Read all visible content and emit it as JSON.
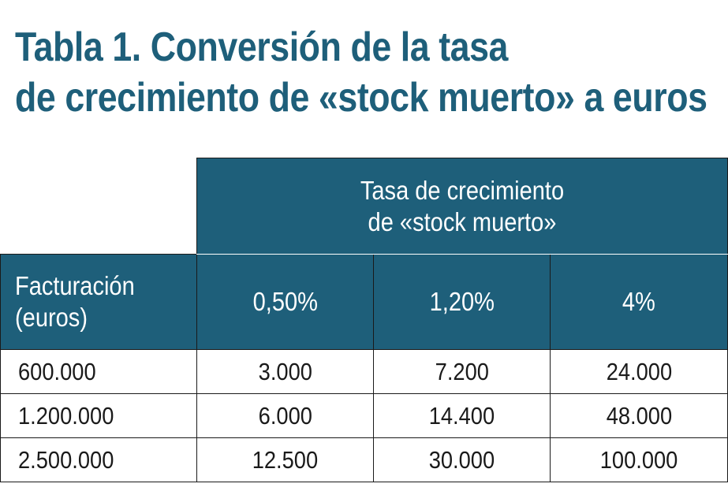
{
  "title": {
    "line1": "Tabla 1. Conversión de la tasa",
    "line2": "de crecimiento de «stock muerto» a euros"
  },
  "table": {
    "group_header": {
      "line1": "Tasa de crecimiento",
      "line2": "de «stock muerto»"
    },
    "row_header": {
      "line1": "Facturación",
      "line2": "(euros)"
    },
    "columns": [
      "0,50%",
      "1,20%",
      "4%"
    ],
    "rows": [
      {
        "facturacion": "600.000",
        "values": [
          "3.000",
          "7.200",
          "24.000"
        ]
      },
      {
        "facturacion": "1.200.000",
        "values": [
          "6.000",
          "14.400",
          "48.000"
        ]
      },
      {
        "facturacion": "2.500.000",
        "values": [
          "12.500",
          "30.000",
          "100.000"
        ]
      }
    ]
  },
  "colors": {
    "header_bg": "#1e5f7a",
    "title_color": "#1e5f7a",
    "header_text": "#ffffff",
    "grid": "#1a1a1a"
  }
}
